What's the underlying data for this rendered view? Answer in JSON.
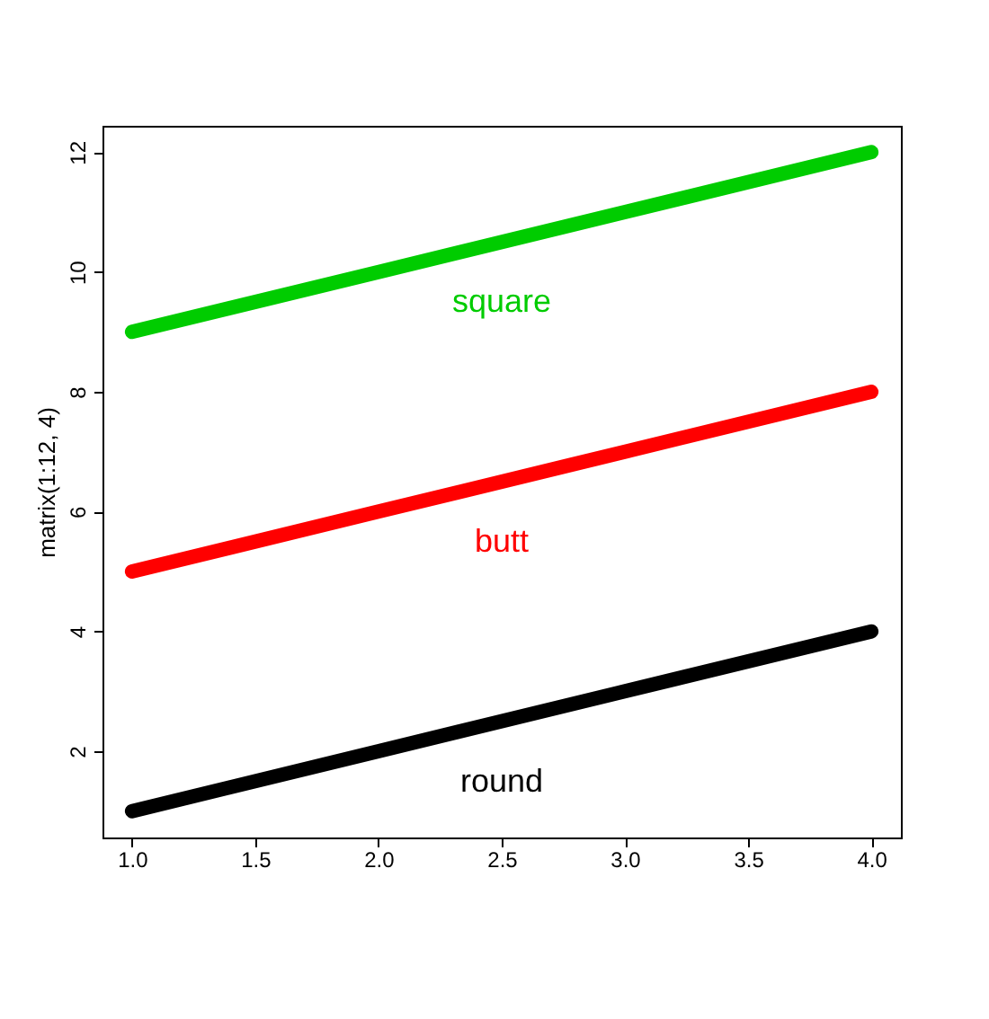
{
  "chart_data": {
    "type": "line",
    "ylabel": "matrix(1:12, 4)",
    "x": [
      1,
      2,
      3,
      4
    ],
    "series": [
      {
        "name": "round",
        "color": "#000000",
        "values": [
          1,
          2,
          3,
          4
        ]
      },
      {
        "name": "butt",
        "color": "#ff0000",
        "values": [
          5,
          6,
          7,
          8
        ]
      },
      {
        "name": "square",
        "color": "#00cc00",
        "values": [
          9,
          10,
          11,
          12
        ]
      }
    ],
    "xlim": [
      0.88,
      4.12
    ],
    "ylim": [
      0.56,
      12.44
    ],
    "xticks": [
      {
        "value": 1,
        "label": "1.0"
      },
      {
        "value": 1.5,
        "label": "1.5"
      },
      {
        "value": 2,
        "label": "2.0"
      },
      {
        "value": 2.5,
        "label": "2.5"
      },
      {
        "value": 3,
        "label": "3.0"
      },
      {
        "value": 3.5,
        "label": "3.5"
      },
      {
        "value": 4,
        "label": "4.0"
      }
    ],
    "yticks": [
      2,
      4,
      6,
      8,
      10,
      12
    ],
    "grid": false,
    "line_style": "solid"
  }
}
